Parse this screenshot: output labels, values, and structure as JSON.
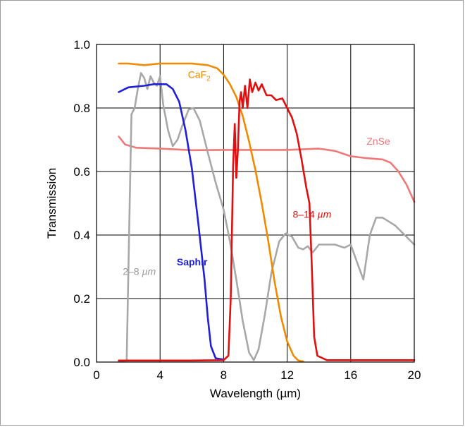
{
  "chart_data": {
    "type": "line",
    "title": "",
    "xlabel": "Wavelength (µm)",
    "ylabel": "Transmission",
    "xlim": [
      0,
      20
    ],
    "ylim": [
      0,
      1.0
    ],
    "x_ticks": [
      "0",
      "4",
      "8",
      "12",
      "16",
      "20"
    ],
    "y_ticks": [
      "0.0",
      "0.2",
      "0.4",
      "0.6",
      "0.8",
      "1.0"
    ],
    "grid": true,
    "legend": "none (labels placed next to curves)",
    "series": [
      {
        "name": "CaF2",
        "label_main": "CaF",
        "label_sub": "2",
        "color": "#f08a00",
        "points": [
          [
            1.4,
            0.94
          ],
          [
            2,
            0.94
          ],
          [
            3,
            0.935
          ],
          [
            4,
            0.94
          ],
          [
            5,
            0.94
          ],
          [
            6,
            0.94
          ],
          [
            7,
            0.935
          ],
          [
            7.6,
            0.925
          ],
          [
            8,
            0.905
          ],
          [
            8.4,
            0.875
          ],
          [
            8.8,
            0.835
          ],
          [
            9.2,
            0.775
          ],
          [
            9.6,
            0.695
          ],
          [
            10,
            0.605
          ],
          [
            10.4,
            0.5
          ],
          [
            10.8,
            0.385
          ],
          [
            11.2,
            0.255
          ],
          [
            11.6,
            0.145
          ],
          [
            12,
            0.065
          ],
          [
            12.4,
            0.02
          ],
          [
            12.7,
            0.005
          ],
          [
            13,
            0.002
          ]
        ]
      },
      {
        "name": "Saphir",
        "color": "#1f1fd8",
        "points": [
          [
            1.4,
            0.85
          ],
          [
            2,
            0.865
          ],
          [
            3,
            0.87
          ],
          [
            3.6,
            0.875
          ],
          [
            4.4,
            0.875
          ],
          [
            4.8,
            0.86
          ],
          [
            5.2,
            0.82
          ],
          [
            5.6,
            0.73
          ],
          [
            6,
            0.61
          ],
          [
            6.4,
            0.44
          ],
          [
            6.8,
            0.26
          ],
          [
            7,
            0.14
          ],
          [
            7.2,
            0.05
          ],
          [
            7.5,
            0.012
          ],
          [
            8,
            0.008
          ]
        ]
      },
      {
        "name": "ZnSe",
        "color": "#f07878",
        "points": [
          [
            1.4,
            0.71
          ],
          [
            1.8,
            0.685
          ],
          [
            2.5,
            0.675
          ],
          [
            4,
            0.672
          ],
          [
            6,
            0.667
          ],
          [
            8,
            0.668
          ],
          [
            10,
            0.668
          ],
          [
            12,
            0.668
          ],
          [
            14,
            0.672
          ],
          [
            15,
            0.665
          ],
          [
            16,
            0.648
          ],
          [
            17,
            0.642
          ],
          [
            18,
            0.638
          ],
          [
            18.5,
            0.628
          ],
          [
            19,
            0.6
          ],
          [
            19.5,
            0.56
          ],
          [
            20,
            0.505
          ]
        ]
      },
      {
        "name": "8–14 µm",
        "label_main": "8–14 ",
        "label_unit": "µm",
        "color": "#e01010",
        "points": [
          [
            1.4,
            0.005
          ],
          [
            6,
            0.005
          ],
          [
            8,
            0.006
          ],
          [
            8.3,
            0.02
          ],
          [
            8.45,
            0.2
          ],
          [
            8.6,
            0.62
          ],
          [
            8.7,
            0.75
          ],
          [
            8.8,
            0.58
          ],
          [
            8.9,
            0.67
          ],
          [
            9,
            0.82
          ],
          [
            9.1,
            0.85
          ],
          [
            9.2,
            0.8
          ],
          [
            9.35,
            0.87
          ],
          [
            9.5,
            0.8
          ],
          [
            9.65,
            0.89
          ],
          [
            9.8,
            0.85
          ],
          [
            10,
            0.88
          ],
          [
            10.2,
            0.855
          ],
          [
            10.4,
            0.875
          ],
          [
            10.7,
            0.84
          ],
          [
            11,
            0.84
          ],
          [
            11.3,
            0.825
          ],
          [
            11.7,
            0.83
          ],
          [
            12,
            0.8
          ],
          [
            12.3,
            0.77
          ],
          [
            12.6,
            0.72
          ],
          [
            12.9,
            0.64
          ],
          [
            13.2,
            0.55
          ],
          [
            13.4,
            0.5
          ],
          [
            13.55,
            0.3
          ],
          [
            13.7,
            0.08
          ],
          [
            13.9,
            0.02
          ],
          [
            14.5,
            0.006
          ],
          [
            20,
            0.006
          ]
        ]
      },
      {
        "name": "2–8 µm",
        "label_main": "2–8 ",
        "label_unit": "µm",
        "color": "#a8a8a8",
        "points": [
          [
            1.4,
            0.003
          ],
          [
            1.9,
            0.005
          ],
          [
            2.05,
            0.4
          ],
          [
            2.2,
            0.78
          ],
          [
            2.4,
            0.8
          ],
          [
            2.6,
            0.86
          ],
          [
            2.8,
            0.91
          ],
          [
            3,
            0.895
          ],
          [
            3.2,
            0.86
          ],
          [
            3.4,
            0.9
          ],
          [
            3.6,
            0.88
          ],
          [
            3.8,
            0.87
          ],
          [
            4,
            0.9
          ],
          [
            4.2,
            0.81
          ],
          [
            4.5,
            0.73
          ],
          [
            4.8,
            0.68
          ],
          [
            5.1,
            0.7
          ],
          [
            5.4,
            0.745
          ],
          [
            5.8,
            0.795
          ],
          [
            6.1,
            0.8
          ],
          [
            6.5,
            0.76
          ],
          [
            7,
            0.66
          ],
          [
            7.5,
            0.565
          ],
          [
            8,
            0.48
          ],
          [
            8.4,
            0.38
          ],
          [
            8.8,
            0.26
          ],
          [
            9.2,
            0.13
          ],
          [
            9.6,
            0.03
          ],
          [
            9.9,
            0.006
          ],
          [
            10.2,
            0.04
          ],
          [
            10.6,
            0.15
          ],
          [
            11,
            0.28
          ],
          [
            11.5,
            0.38
          ],
          [
            11.9,
            0.405
          ],
          [
            12.3,
            0.395
          ],
          [
            12.7,
            0.36
          ],
          [
            13,
            0.355
          ],
          [
            13.3,
            0.365
          ],
          [
            13.6,
            0.345
          ],
          [
            14,
            0.37
          ],
          [
            15,
            0.37
          ],
          [
            15.6,
            0.36
          ],
          [
            16,
            0.37
          ],
          [
            16.5,
            0.3
          ],
          [
            16.8,
            0.26
          ],
          [
            17.2,
            0.4
          ],
          [
            17.6,
            0.455
          ],
          [
            18,
            0.455
          ],
          [
            18.8,
            0.43
          ],
          [
            19.5,
            0.395
          ],
          [
            20,
            0.37
          ]
        ]
      }
    ]
  }
}
